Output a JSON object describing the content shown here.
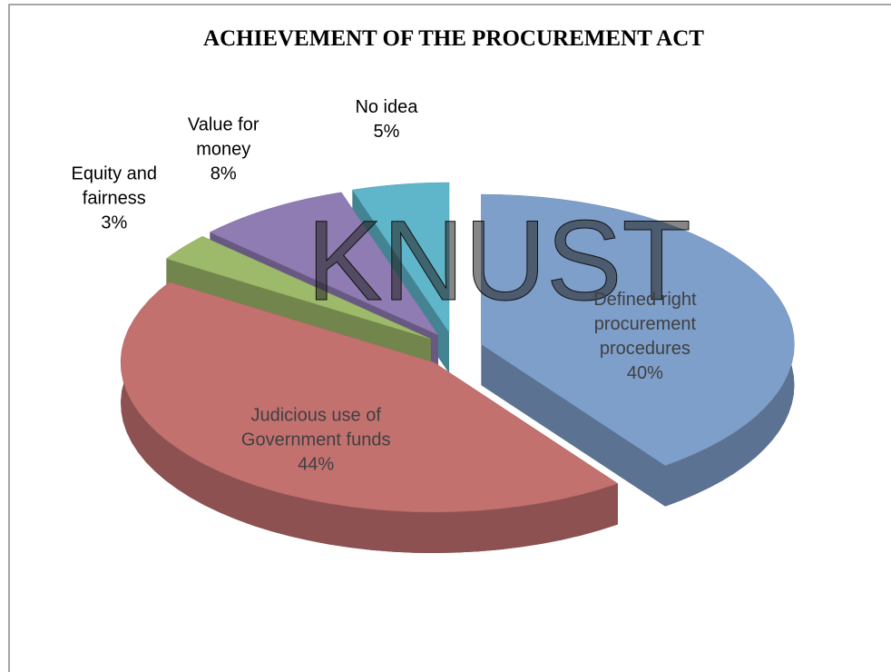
{
  "chart_data": {
    "type": "pie3d",
    "title": "ACHIEVEMENT OF THE PROCUREMENT ACT",
    "categories": [
      "Defined right procurement procedures",
      "Judicious use of Government funds",
      "Equity and fairness",
      "Value for money",
      "No idea"
    ],
    "values": [
      40,
      44,
      3,
      8,
      5
    ],
    "value_labels": [
      "40%",
      "44%",
      "3%",
      "8%",
      "5%"
    ],
    "colors": [
      "#7f9fcb",
      "#c2716f",
      "#9db96a",
      "#8f7cb3",
      "#5fb6ca"
    ]
  },
  "watermark": "KNUST"
}
